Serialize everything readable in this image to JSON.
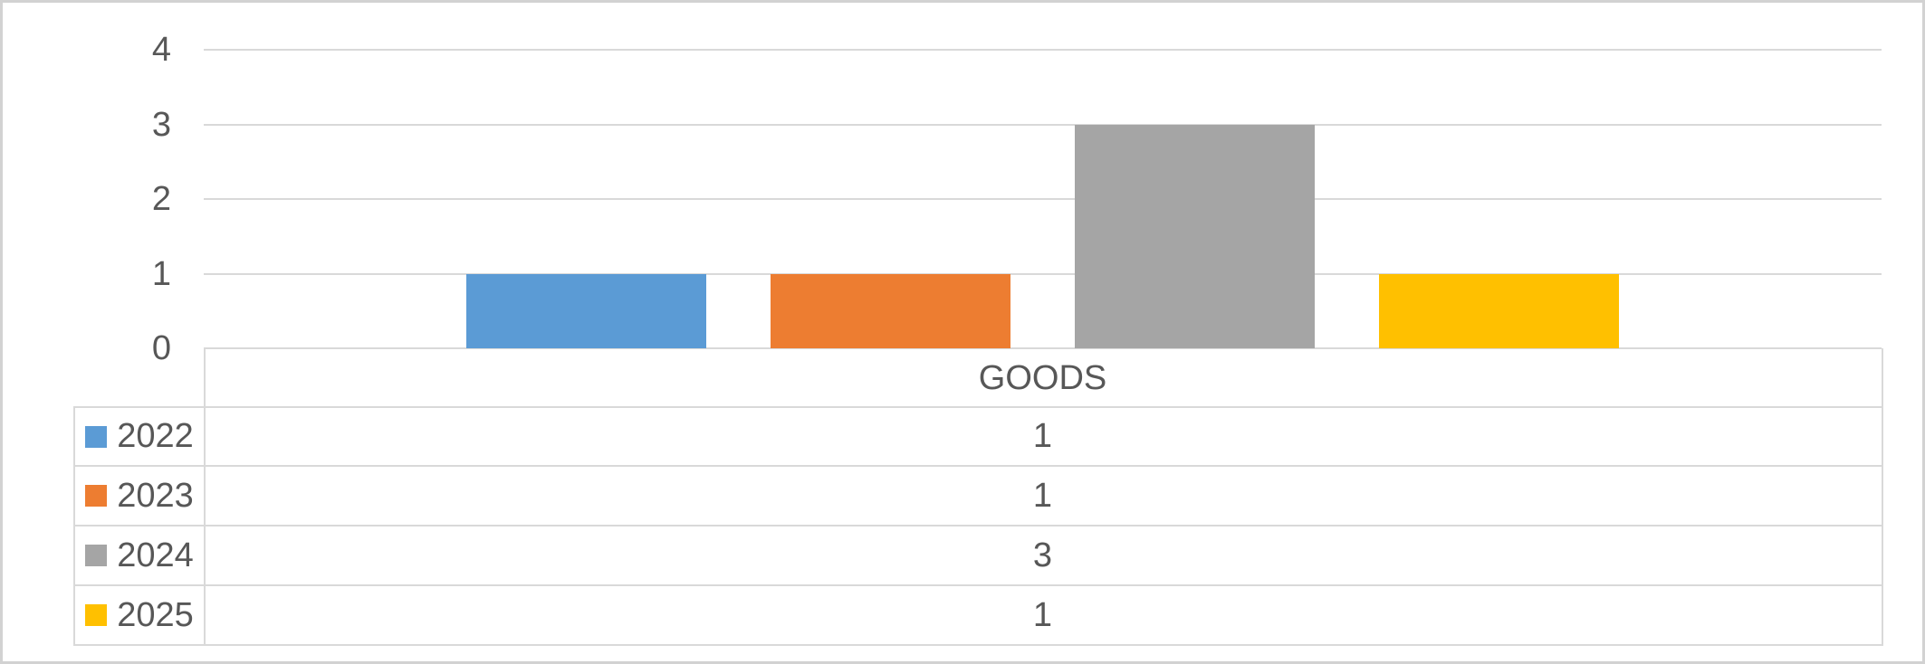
{
  "chart_data": {
    "type": "bar",
    "title": "",
    "xlabel": "",
    "ylabel": "",
    "categories": [
      "GOODS"
    ],
    "series": [
      {
        "name": "2022",
        "values": [
          1
        ],
        "color": "#5B9BD5"
      },
      {
        "name": "2023",
        "values": [
          1
        ],
        "color": "#ED7D31"
      },
      {
        "name": "2024",
        "values": [
          3
        ],
        "color": "#A5A5A5"
      },
      {
        "name": "2025",
        "values": [
          1
        ],
        "color": "#FFC000"
      }
    ],
    "ylim": [
      0,
      4
    ],
    "yticks": [
      "0",
      "1",
      "2",
      "3",
      "4"
    ],
    "grid": true,
    "legend_position": "data-table-left",
    "data_table": {
      "category_header": "GOODS",
      "rows": [
        {
          "label": "2022",
          "value": "1"
        },
        {
          "label": "2023",
          "value": "1"
        },
        {
          "label": "2024",
          "value": "3"
        },
        {
          "label": "2025",
          "value": "1"
        }
      ]
    }
  },
  "colors": {
    "background": "#FFFFFF",
    "outer_border": "#D2D2D2",
    "gridline": "#D9D9D9",
    "table_border": "#D9D9D9",
    "text": "#575757"
  }
}
